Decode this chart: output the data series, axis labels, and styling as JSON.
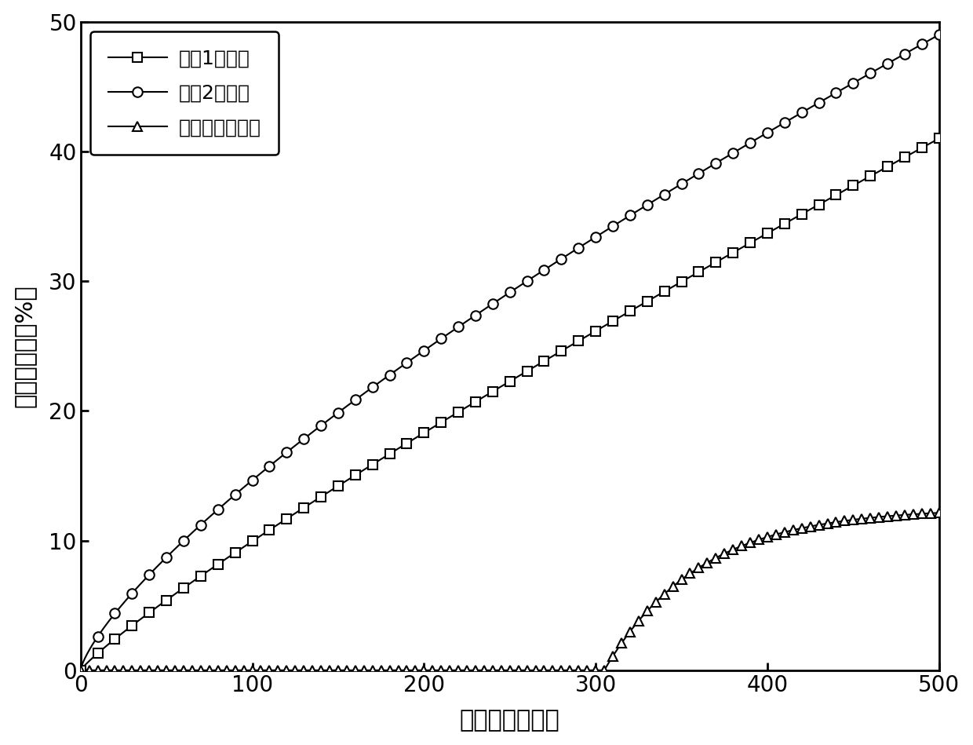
{
  "xlabel": "光照时间（秒）",
  "ylabel": "环氧转化率（%）",
  "xlim": [
    0,
    500
  ],
  "ylim": [
    0,
    50
  ],
  "xticks": [
    0,
    100,
    200,
    300,
    400,
    500
  ],
  "yticks": [
    0,
    10,
    20,
    30,
    40,
    50
  ],
  "legend_labels": [
    "染料1双组份",
    "染料2双组份",
    "不含染料单组份"
  ],
  "line_color": "#000000",
  "marker_size": 9,
  "linewidth": 1.5,
  "background_color": "#ffffff",
  "legend_fontsize": 18,
  "axis_label_fontsize": 22,
  "tick_fontsize": 20
}
